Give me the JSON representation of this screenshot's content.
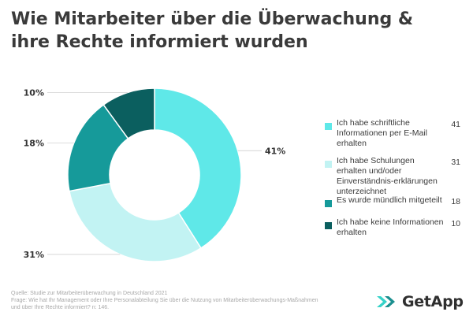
{
  "title_lines": [
    "Wie Mitarbeiter über die Überwachung &",
    "ihre Rechte informiert wurden"
  ],
  "chart_data": {
    "type": "pie",
    "title": "Wie Mitarbeiter über die Überwachung & ihre Rechte informiert wurden",
    "categories": [
      "Ich habe schriftliche Informationen per E-Mail erhalten",
      "Ich habe Schulungen erhalten und/oder Einverständnis-erklärungen unterzeichnet",
      "Es wurde mündlich mitgeteilt",
      "Ich habe keine Informationen erhalten"
    ],
    "values": [
      41,
      31,
      18,
      10
    ],
    "value_labels": [
      "41%",
      "31%",
      "18%",
      "10%"
    ],
    "colors": [
      "#5fe8e8",
      "#c2f3f3",
      "#169a9a",
      "#0b5f5f"
    ],
    "legend_labels": [
      "Ich habe schriftliche Informationen per E-Mail erhalten",
      "Ich habe Schulungen erhalten und/oder Einverständnis-erklärungen unterzeichnet",
      "Es wurde mündlich mitgeteilt",
      "Ich habe keine Informationen erhalten"
    ],
    "legend_values": [
      "41",
      "31",
      "18",
      "10"
    ],
    "legend_position": "right",
    "style": "donut"
  },
  "footer": {
    "source": "Quelle: Studie zur Mitarbeiterüberwachung in Deutschland 2021",
    "question_line1": "Frage: Wie hat Ihr Management oder Ihre Personalabteilung Sie über die Nutzung von Mitarbeiterüberwachungs-Maßnahmen",
    "question_line2": "und über Ihre Rechte informiert? n: 146."
  },
  "logo": {
    "text": "GetApp",
    "icon": "getapp-chevrons-icon",
    "colors": [
      "#35d2c8",
      "#1b8f8f"
    ]
  }
}
